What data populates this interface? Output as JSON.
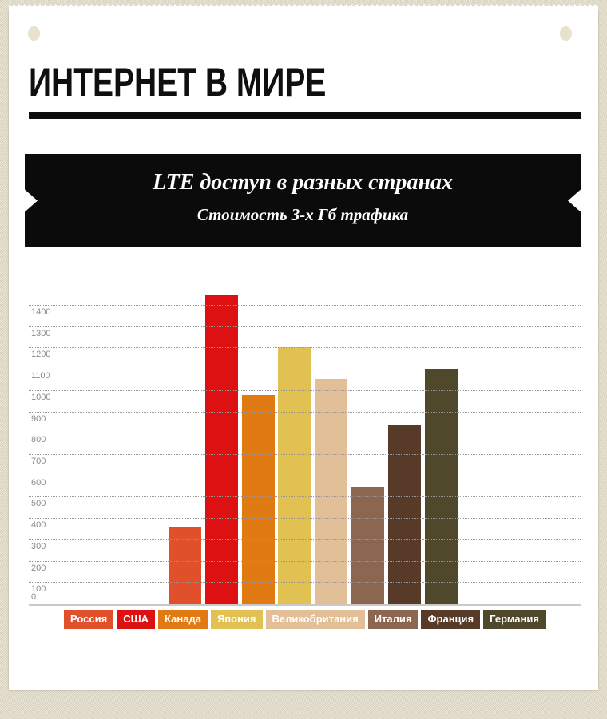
{
  "page": {
    "title": "ИНТЕРНЕТ В МИРЕ"
  },
  "banner": {
    "title": "LTE доступ в разных странах",
    "subtitle": "Стоимость 3-х Гб трафика"
  },
  "colors": {
    "background": "#DFD8C4",
    "paper": "#FFFFFF",
    "banner_bg": "#0B0B0B",
    "title_text": "#0F0F0F",
    "grid_dot": "#979797",
    "axis_label": "#8B8B8B",
    "baseline": "#C9C9C9",
    "hole": "#E7E1CE"
  },
  "chart_data": {
    "type": "bar",
    "title": "LTE доступ в разных странах",
    "subtitle": "Стоимость 3-х Гб трафика",
    "categories": [
      "Россия",
      "США",
      "Канада",
      "Япония",
      "Великобритания",
      "Италия",
      "Франция",
      "Германия"
    ],
    "values": [
      360,
      1450,
      980,
      1205,
      1055,
      550,
      840,
      1105
    ],
    "bar_colors": [
      "#E0502B",
      "#DD1111",
      "#E17A12",
      "#E2C153",
      "#E2BF97",
      "#8C6650",
      "#573A28",
      "#4F482A"
    ],
    "y_ticks": [
      0,
      100,
      200,
      300,
      400,
      500,
      600,
      700,
      800,
      900,
      1000,
      1100,
      1200,
      1300,
      1400
    ],
    "ylim": [
      0,
      1460
    ],
    "grid": "dotted horizontal, 100-unit steps",
    "legend_position": "bottom"
  }
}
